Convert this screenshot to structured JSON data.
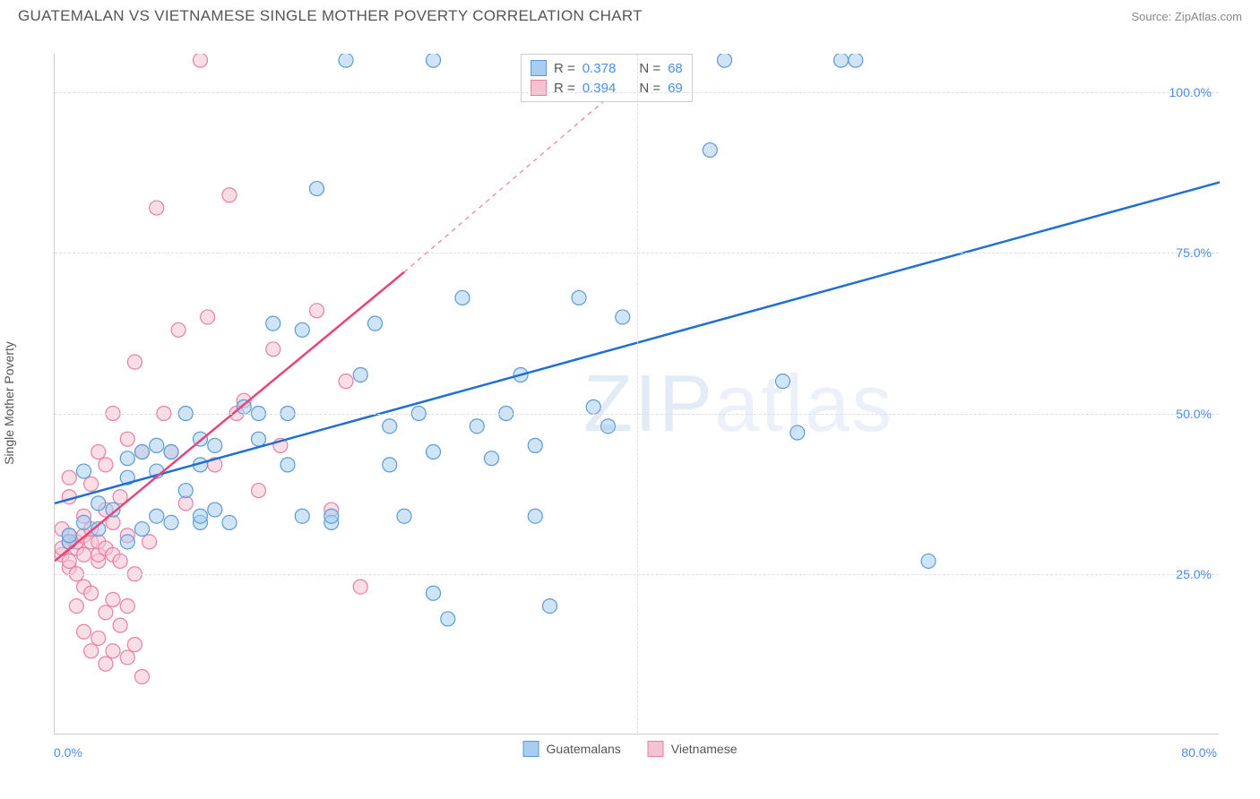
{
  "header": {
    "title": "GUATEMALAN VS VIETNAMESE SINGLE MOTHER POVERTY CORRELATION CHART",
    "source": "Source: ZipAtlas.com"
  },
  "chart": {
    "type": "scatter",
    "y_axis_label": "Single Mother Poverty",
    "xlim": [
      0,
      80
    ],
    "ylim": [
      0,
      106
    ],
    "x_ticks": [
      {
        "val": 0,
        "label": "0.0%"
      },
      {
        "val": 80,
        "label": "80.0%"
      }
    ],
    "y_ticks": [
      {
        "val": 25,
        "label": "25.0%"
      },
      {
        "val": 50,
        "label": "50.0%"
      },
      {
        "val": 75,
        "label": "75.0%"
      },
      {
        "val": 100,
        "label": "100.0%"
      }
    ],
    "v_grid_at": [
      40
    ],
    "background_color": "#ffffff",
    "grid_color": "#dddddd",
    "axis_color": "#cccccc",
    "tick_label_color": "#4a8ee8",
    "label_fontsize": 14,
    "title_fontsize": 17,
    "watermark": "ZIPatlas",
    "marker_radius": 8,
    "marker_opacity": 0.55,
    "line_width": 2.5,
    "series": {
      "guatemalans": {
        "label": "Guatemalans",
        "fill": "#a8cdf0",
        "stroke": "#5b9bd5",
        "line_color": "#1f6fd4",
        "R": "0.378",
        "N": "68",
        "trend": {
          "x1": 0,
          "y1": 36,
          "x2": 80,
          "y2": 86
        },
        "points": [
          [
            1,
            30
          ],
          [
            1,
            31
          ],
          [
            2,
            33
          ],
          [
            2,
            41
          ],
          [
            3,
            32
          ],
          [
            3,
            36
          ],
          [
            4,
            35
          ],
          [
            5,
            30
          ],
          [
            5,
            40
          ],
          [
            5,
            43
          ],
          [
            6,
            32
          ],
          [
            6,
            44
          ],
          [
            7,
            34
          ],
          [
            7,
            41
          ],
          [
            7,
            45
          ],
          [
            8,
            33
          ],
          [
            8,
            44
          ],
          [
            9,
            38
          ],
          [
            9,
            50
          ],
          [
            10,
            33
          ],
          [
            10,
            34
          ],
          [
            10,
            42
          ],
          [
            10,
            46
          ],
          [
            11,
            35
          ],
          [
            11,
            45
          ],
          [
            12,
            33
          ],
          [
            13,
            51
          ],
          [
            14,
            46
          ],
          [
            14,
            50
          ],
          [
            15,
            64
          ],
          [
            16,
            42
          ],
          [
            16,
            50
          ],
          [
            17,
            34
          ],
          [
            17,
            63
          ],
          [
            18,
            85
          ],
          [
            19,
            33
          ],
          [
            19,
            34
          ],
          [
            20,
            105
          ],
          [
            21,
            56
          ],
          [
            22,
            64
          ],
          [
            23,
            42
          ],
          [
            23,
            48
          ],
          [
            24,
            34
          ],
          [
            25,
            50
          ],
          [
            26,
            22
          ],
          [
            26,
            44
          ],
          [
            26,
            105
          ],
          [
            27,
            18
          ],
          [
            28,
            68
          ],
          [
            29,
            48
          ],
          [
            30,
            43
          ],
          [
            31,
            50
          ],
          [
            32,
            56
          ],
          [
            33,
            34
          ],
          [
            33,
            45
          ],
          [
            34,
            20
          ],
          [
            36,
            68
          ],
          [
            37,
            51
          ],
          [
            38,
            48
          ],
          [
            39,
            65
          ],
          [
            40,
            105
          ],
          [
            45,
            91
          ],
          [
            46,
            105
          ],
          [
            50,
            55
          ],
          [
            51,
            47
          ],
          [
            54,
            105
          ],
          [
            55,
            105
          ],
          [
            60,
            27
          ]
        ]
      },
      "vietnamese": {
        "label": "Vietnamese",
        "fill": "#f5c2d1",
        "stroke": "#e87fa5",
        "line_color": "#e8447a",
        "R": "0.394",
        "N": "69",
        "trend": {
          "x1": 0,
          "y1": 27,
          "x2": 24,
          "y2": 72
        },
        "trend_dash": {
          "x1": 24,
          "y1": 72,
          "x2": 41,
          "y2": 105
        },
        "points": [
          [
            0.5,
            28
          ],
          [
            0.5,
            29
          ],
          [
            0.5,
            32
          ],
          [
            1,
            26
          ],
          [
            1,
            27
          ],
          [
            1,
            30
          ],
          [
            1,
            31
          ],
          [
            1,
            37
          ],
          [
            1,
            40
          ],
          [
            1.5,
            20
          ],
          [
            1.5,
            25
          ],
          [
            1.5,
            29
          ],
          [
            1.5,
            30
          ],
          [
            2,
            16
          ],
          [
            2,
            23
          ],
          [
            2,
            28
          ],
          [
            2,
            31
          ],
          [
            2,
            34
          ],
          [
            2.5,
            13
          ],
          [
            2.5,
            22
          ],
          [
            2.5,
            30
          ],
          [
            2.5,
            32
          ],
          [
            2.5,
            39
          ],
          [
            3,
            15
          ],
          [
            3,
            27
          ],
          [
            3,
            28
          ],
          [
            3,
            30
          ],
          [
            3,
            44
          ],
          [
            3.5,
            11
          ],
          [
            3.5,
            19
          ],
          [
            3.5,
            29
          ],
          [
            3.5,
            35
          ],
          [
            3.5,
            42
          ],
          [
            4,
            13
          ],
          [
            4,
            21
          ],
          [
            4,
            28
          ],
          [
            4,
            33
          ],
          [
            4,
            50
          ],
          [
            4.5,
            17
          ],
          [
            4.5,
            27
          ],
          [
            4.5,
            37
          ],
          [
            5,
            12
          ],
          [
            5,
            20
          ],
          [
            5,
            31
          ],
          [
            5,
            46
          ],
          [
            5.5,
            14
          ],
          [
            5.5,
            25
          ],
          [
            5.5,
            58
          ],
          [
            6,
            9
          ],
          [
            6,
            44
          ],
          [
            6.5,
            30
          ],
          [
            7,
            82
          ],
          [
            7.5,
            50
          ],
          [
            8,
            44
          ],
          [
            8.5,
            63
          ],
          [
            9,
            36
          ],
          [
            10,
            105
          ],
          [
            10.5,
            65
          ],
          [
            11,
            42
          ],
          [
            12,
            84
          ],
          [
            12.5,
            50
          ],
          [
            13,
            52
          ],
          [
            14,
            38
          ],
          [
            15,
            60
          ],
          [
            15.5,
            45
          ],
          [
            18,
            66
          ],
          [
            19,
            35
          ],
          [
            20,
            55
          ],
          [
            21,
            23
          ]
        ]
      }
    },
    "legend_bottom": [
      {
        "swatch_fill": "#a8cdf0",
        "swatch_stroke": "#5b9bd5",
        "label": "Guatemalans"
      },
      {
        "swatch_fill": "#f5c2d1",
        "swatch_stroke": "#e87fa5",
        "label": "Vietnamese"
      }
    ],
    "stats_legend": {
      "rows": [
        {
          "swatch_fill": "#a8cdf0",
          "swatch_stroke": "#5b9bd5",
          "r_label": "R =",
          "r_val": "0.378",
          "n_label": "N =",
          "n_val": "68"
        },
        {
          "swatch_fill": "#f5c2d1",
          "swatch_stroke": "#e87fa5",
          "r_label": "R =",
          "r_val": "0.394",
          "n_label": "N =",
          "n_val": "69"
        }
      ]
    }
  }
}
